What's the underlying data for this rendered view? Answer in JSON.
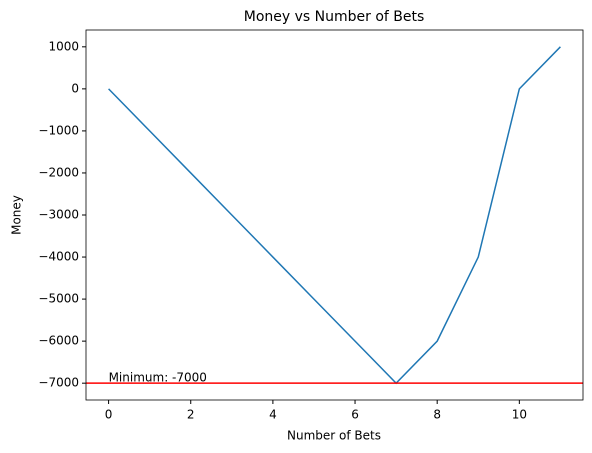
{
  "chart_data": {
    "type": "line",
    "title": "Money vs Number of Bets",
    "x_label": "Number of Bets",
    "y_label": "Money",
    "x": [
      0,
      1,
      2,
      3,
      4,
      5,
      6,
      7,
      8,
      9,
      10,
      11
    ],
    "series": [
      {
        "name": "Money",
        "color": "#1f77b4",
        "values": [
          0,
          -1000,
          -2000,
          -3000,
          -4000,
          -5000,
          -6000,
          -7000,
          -6000,
          -4000,
          0,
          1000
        ]
      }
    ],
    "xlim": [
      -0.55,
      11.55
    ],
    "xticks": [
      0,
      2,
      4,
      6,
      8,
      10
    ],
    "ylim": [
      -7400,
      1400
    ],
    "yticks": [
      {
        "value": -7000,
        "label": "−7000"
      },
      {
        "value": -6000,
        "label": "−6000"
      },
      {
        "value": -5000,
        "label": "−5000"
      },
      {
        "value": -4000,
        "label": "−4000"
      },
      {
        "value": -3000,
        "label": "−3000"
      },
      {
        "value": -2000,
        "label": "−2000"
      },
      {
        "value": -1000,
        "label": "−1000"
      },
      0,
      1000
    ],
    "reference_line": {
      "value": -7000,
      "color": "red",
      "label": "Minimum: -7000"
    },
    "grid": false
  }
}
